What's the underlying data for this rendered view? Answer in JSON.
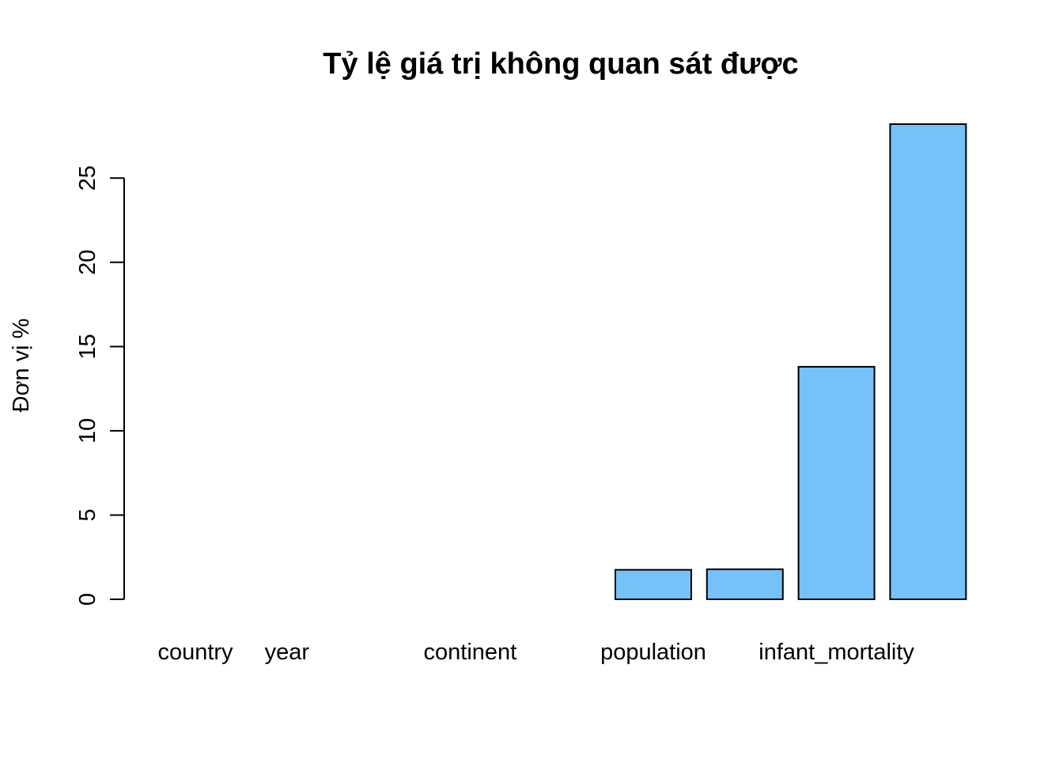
{
  "chart_data": {
    "type": "bar",
    "title": "Tỷ lệ giá trị không quan sát được",
    "xlabel": "",
    "ylabel": "Đơn vị %",
    "categories": [
      "country",
      "year",
      "",
      "continent",
      "",
      "population",
      "",
      "infant_mortality",
      ""
    ],
    "values": [
      0,
      0,
      0,
      0,
      0,
      1.75,
      1.78,
      13.8,
      28.2
    ],
    "ylim": [
      0,
      28.2
    ],
    "yticks": [
      0,
      5,
      10,
      15,
      20,
      25
    ],
    "bar_color": "#76c1f8",
    "grid": false
  }
}
